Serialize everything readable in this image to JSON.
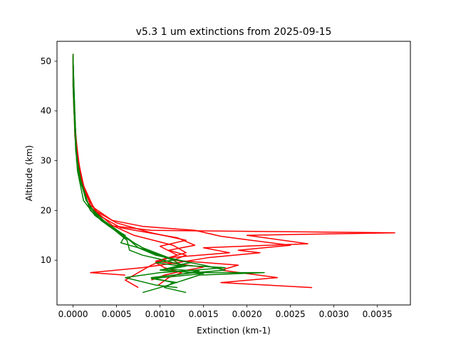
{
  "chart_data": {
    "type": "line",
    "title": "v5.3 1 um extinctions from 2025-09-15",
    "xlabel": "Extinction (km-1)",
    "ylabel": "Altitude (km)",
    "xlim": [
      -0.000185,
      0.00388
    ],
    "ylim": [
      1.0,
      54.0
    ],
    "xticks": [
      {
        "value": 0.0,
        "label": "0.0000"
      },
      {
        "value": 0.0005,
        "label": "0.0005"
      },
      {
        "value": 0.001,
        "label": "0.0010"
      },
      {
        "value": 0.0015,
        "label": "0.0015"
      },
      {
        "value": 0.002,
        "label": "0.0020"
      },
      {
        "value": 0.0025,
        "label": "0.0025"
      },
      {
        "value": 0.003,
        "label": "0.0030"
      },
      {
        "value": 0.0035,
        "label": "0.0035"
      }
    ],
    "yticks": [
      {
        "value": 10,
        "label": "10"
      },
      {
        "value": 20,
        "label": "20"
      },
      {
        "value": 30,
        "label": "30"
      },
      {
        "value": 40,
        "label": "40"
      },
      {
        "value": 50,
        "label": "50"
      }
    ],
    "grid": false,
    "legend": "none",
    "series_colors": {
      "red": "#ff0000",
      "green": "#008000"
    },
    "series": [
      {
        "color": "red",
        "x": [
          0.0,
          0.0,
          1e-05,
          3e-05,
          6e-05,
          0.00012,
          0.00025,
          0.00045,
          0.0007,
          0.00115,
          0.0013,
          0.0011,
          0.00095,
          0.00105,
          0.00125,
          0.0011,
          0.00098
        ],
        "y": [
          51.5,
          45,
          40,
          35,
          30,
          25,
          20,
          17,
          15,
          13,
          11.5,
          10.5,
          9.5,
          8.5,
          7.5,
          6.5,
          5.0
        ]
      },
      {
        "color": "red",
        "x": [
          0.0,
          1e-05,
          2e-05,
          5e-05,
          0.0001,
          0.0002,
          0.0004,
          0.0009,
          0.0037,
          0.002,
          0.0027,
          0.0015,
          0.0018,
          0.0011,
          0.0009,
          0.0006,
          0.00075
        ],
        "y": [
          51.0,
          42,
          35,
          30,
          25,
          20,
          17,
          16,
          15.5,
          15,
          13.3,
          12.5,
          11.5,
          10.5,
          9.0,
          6.0,
          4.5
        ]
      },
      {
        "color": "red",
        "x": [
          0.0,
          1e-05,
          4e-05,
          8e-05,
          0.00015,
          0.0003,
          0.00055,
          0.0012,
          0.0014,
          0.0011,
          0.0013,
          0.00115,
          0.0019,
          0.0017,
          0.00235,
          0.0017,
          0.00275
        ],
        "y": [
          50.0,
          40,
          33,
          28,
          23,
          19,
          16.5,
          14.5,
          13.0,
          12.0,
          11.0,
          10.0,
          9.0,
          8.0,
          6.5,
          5.5,
          4.5
        ]
      },
      {
        "color": "red",
        "x": [
          0.0,
          2e-05,
          5e-05,
          0.0001,
          0.0002,
          0.00045,
          0.0008,
          0.0014,
          0.0017,
          0.00205,
          0.0025,
          0.0019,
          0.00215,
          0.00155,
          0.0012,
          0.0008,
          0.0002,
          0.0006
        ],
        "y": [
          49.0,
          38,
          31,
          26,
          21,
          18,
          16.8,
          16.0,
          14.8,
          14.0,
          13.0,
          12.0,
          11.5,
          10.5,
          9.5,
          8.5,
          7.5,
          7.0
        ]
      },
      {
        "color": "red",
        "x": [
          0.0,
          1e-05,
          3e-05,
          7e-05,
          0.00013,
          0.00025,
          0.0005,
          0.0009,
          0.0013,
          0.001,
          0.0012,
          0.00095,
          0.0015,
          0.00125,
          0.00105,
          0.0009
        ],
        "y": [
          50.5,
          43,
          35,
          29,
          24,
          20,
          17.5,
          15.5,
          14.0,
          12.8,
          11.0,
          9.8,
          8.6,
          7.8,
          7.0,
          6.0
        ]
      },
      {
        "color": "green",
        "x": [
          0.0,
          0.0,
          2e-05,
          5e-05,
          0.00012,
          0.00025,
          0.00045,
          0.0006,
          0.0008,
          0.0011,
          0.00125,
          0.001,
          0.0014,
          0.0009,
          0.00115,
          0.00105,
          0.0013
        ],
        "y": [
          51.5,
          45,
          36,
          28,
          22,
          19,
          16.5,
          14.5,
          12.5,
          10.5,
          9.0,
          8.0,
          7.5,
          6.5,
          5.5,
          4.5,
          3.5
        ]
      },
      {
        "color": "green",
        "x": [
          0.0,
          1e-05,
          3e-05,
          8e-05,
          0.00018,
          0.00035,
          0.00055,
          0.00065,
          0.00075,
          0.00095,
          0.0012,
          0.0015,
          0.00175,
          0.0014,
          0.0022,
          0.00145,
          0.0011,
          0.0008
        ],
        "y": [
          51.0,
          42,
          32,
          26,
          21,
          18,
          15.5,
          14.0,
          12.5,
          11.0,
          10.0,
          9.0,
          8.0,
          7.5,
          7.5,
          7.0,
          5.0,
          3.5
        ]
      },
      {
        "color": "green",
        "x": [
          0.0,
          2e-05,
          4e-05,
          0.0001,
          0.0002,
          0.0004,
          0.0006,
          0.00055,
          0.00085,
          0.0011,
          0.00135,
          0.0012,
          0.00175,
          0.0014,
          0.001,
          0.0006,
          0.00095,
          0.0012
        ],
        "y": [
          50.0,
          40,
          30,
          25,
          20,
          17,
          15.0,
          13.5,
          12.0,
          10.5,
          9.5,
          9.0,
          8.5,
          8.0,
          7.5,
          6.5,
          5.0,
          4.5
        ]
      },
      {
        "color": "green",
        "x": [
          0.0,
          1e-05,
          3e-05,
          7e-05,
          0.00015,
          0.0003,
          0.0005,
          0.0007,
          0.0009,
          0.00115,
          0.00095,
          0.00125,
          0.00105,
          0.0015,
          0.0009,
          0.0012
        ],
        "y": [
          49.5,
          41,
          33,
          27,
          22,
          18.5,
          16.0,
          13.5,
          11.5,
          10.0,
          9.5,
          8.8,
          8.0,
          7.3,
          6.3,
          5.5
        ]
      },
      {
        "color": "green",
        "x": [
          0.0,
          2e-05,
          4e-05,
          9e-05,
          0.00018,
          0.00032,
          0.00048,
          0.00062,
          0.00065,
          0.0008,
          0.001,
          0.00115,
          0.0013,
          0.0011,
          0.00145,
          0.00125
        ],
        "y": [
          50.5,
          39,
          31,
          26,
          21,
          18,
          16.0,
          14.0,
          12.0,
          11.0,
          10.2,
          9.5,
          8.8,
          8.2,
          7.8,
          7.2
        ]
      }
    ]
  }
}
